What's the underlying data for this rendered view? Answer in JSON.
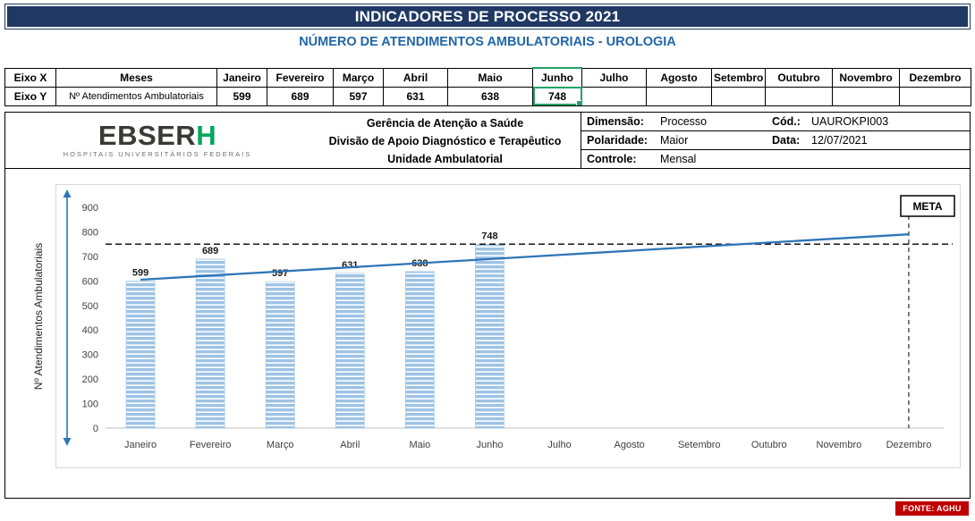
{
  "colors": {
    "banner_bg": "#1F3864",
    "subtitle_text": "#2166A8",
    "bar_fill": "#9DC3E6",
    "trend_line": "#2E75B6",
    "axis_arrow": "#2E75B6",
    "selection_green": "#21A366",
    "fonte_bg": "#C00000",
    "ebserh_green": "#00A859",
    "ebserh_gray": "#3B3838"
  },
  "banner": {
    "title": "INDICADORES DE PROCESSO 2021"
  },
  "subtitle": "NÚMERO DE ATENDIMENTOS AMBULATORIAIS -  UROLOGIA",
  "axis_table": {
    "x_label": "Eixo X",
    "x_name": "Meses",
    "y_label": "Eixo Y",
    "y_name": "Nº Atendimentos Ambulatoriais",
    "months": [
      "Janeiro",
      "Fevereiro",
      "Março",
      "Abril",
      "Maio",
      "Junho",
      "Julho",
      "Agosto",
      "Setembro",
      "Outubro",
      "Novembro",
      "Dezembro"
    ],
    "values": [
      "599",
      "689",
      "597",
      "631",
      "638",
      "748",
      "",
      "",
      "",
      "",
      "",
      ""
    ]
  },
  "org_header": {
    "logo_left": "EBSER",
    "logo_h": "H",
    "logo_sub": "HOSPITAIS UNIVERSITÁRIOS FEDERAIS",
    "lines": [
      "Gerência de Atenção a Saúde",
      "Divisão de Apoio Diagnóstico e Terapêutico",
      "Unidade Ambulatorial"
    ],
    "fields": [
      {
        "label": "Dimensão:",
        "value": "Processo",
        "label2": "Cód.:",
        "value2": "UAUROKPI003"
      },
      {
        "label": "Polaridade:",
        "value": "Maior",
        "label2": "Data:",
        "value2": "12/07/2021"
      },
      {
        "label": "Controle:",
        "value": "Mensal",
        "label2": "",
        "value2": ""
      }
    ]
  },
  "chart_data": {
    "type": "bar",
    "title": "",
    "categories": [
      "Janeiro",
      "Fevereiro",
      "Março",
      "Abril",
      "Maio",
      "Junho",
      "Julho",
      "Agosto",
      "Setembro",
      "Outubro",
      "Novembro",
      "Dezembro"
    ],
    "values": [
      599,
      689,
      597,
      631,
      638,
      748,
      null,
      null,
      null,
      null,
      null,
      null
    ],
    "xlabel": "",
    "ylabel": "Nº Atendimentos Ambulatoriais",
    "ylim": [
      0,
      900
    ],
    "ytick_step": 100,
    "grid": false,
    "legend": "none",
    "meta": {
      "label": "META",
      "value": 750
    },
    "trend_line": {
      "start": 605,
      "end": 790
    }
  },
  "footer": {
    "fonte": "FONTE: AGHU"
  }
}
